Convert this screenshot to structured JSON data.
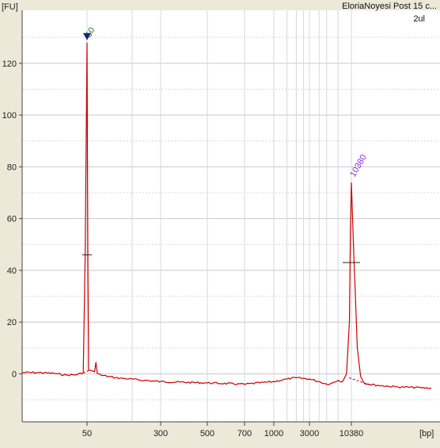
{
  "window_title": "EloriaNoyesi Post 15 c...",
  "sample_label": "2ul",
  "chart_data": {
    "type": "line",
    "xlabel": "[bp]",
    "ylabel": "[FU]",
    "ylim": [
      -18,
      140
    ],
    "grid": true,
    "y_ticks": [
      0,
      20,
      40,
      60,
      80,
      100,
      120
    ],
    "x_ticks": [
      "50",
      "300",
      "500",
      "700",
      "1000",
      "3000",
      "10380"
    ],
    "series": [
      {
        "color": "#cc0000",
        "x_bp": [
          25,
          30,
          35,
          40,
          45,
          48,
          49,
          50,
          51,
          52,
          55,
          60,
          62,
          64,
          66,
          70,
          100,
          200,
          300,
          500,
          700,
          1000,
          1500,
          2000,
          3000,
          4000,
          5000,
          6000,
          7000,
          8000,
          9000,
          9800,
          10100,
          10380,
          10600,
          10900,
          11200,
          11500,
          12000,
          13000,
          15000,
          20000
        ],
        "y": [
          0.5,
          0.5,
          0.2,
          -0.5,
          -0.3,
          0.5,
          45,
          128,
          45,
          1.5,
          1.3,
          0.8,
          4.5,
          0.3,
          0.0,
          -0.5,
          -1.5,
          -2.5,
          -3.0,
          -3.5,
          -4.0,
          -3.0,
          -2.0,
          -1.5,
          -2.0,
          -3.0,
          -4.0,
          -3.5,
          -2.5,
          -3.0,
          0,
          20,
          55,
          74,
          45,
          10,
          -1,
          -3.5,
          -4.0,
          -4.5,
          -5.0,
          -5.5
        ]
      }
    ],
    "markers": [
      {
        "bp": 50,
        "fu": 46
      },
      {
        "bp": 10380,
        "fu": 43
      }
    ],
    "peak_labels": [
      {
        "text": "50",
        "bp": 50,
        "fu": 128,
        "color": "#1a7a1a"
      },
      {
        "text": "10380",
        "bp": 10380,
        "fu": 74,
        "color": "#8a2be2"
      }
    ],
    "colors": {
      "trace": "#cc0000",
      "grid_major": "#c9c9c9",
      "grid_minor": "#d4d8e4",
      "plot_bg": "#ffffff",
      "frame_bg": "#ece9d8",
      "marker_triangle": "#1a237e"
    }
  }
}
